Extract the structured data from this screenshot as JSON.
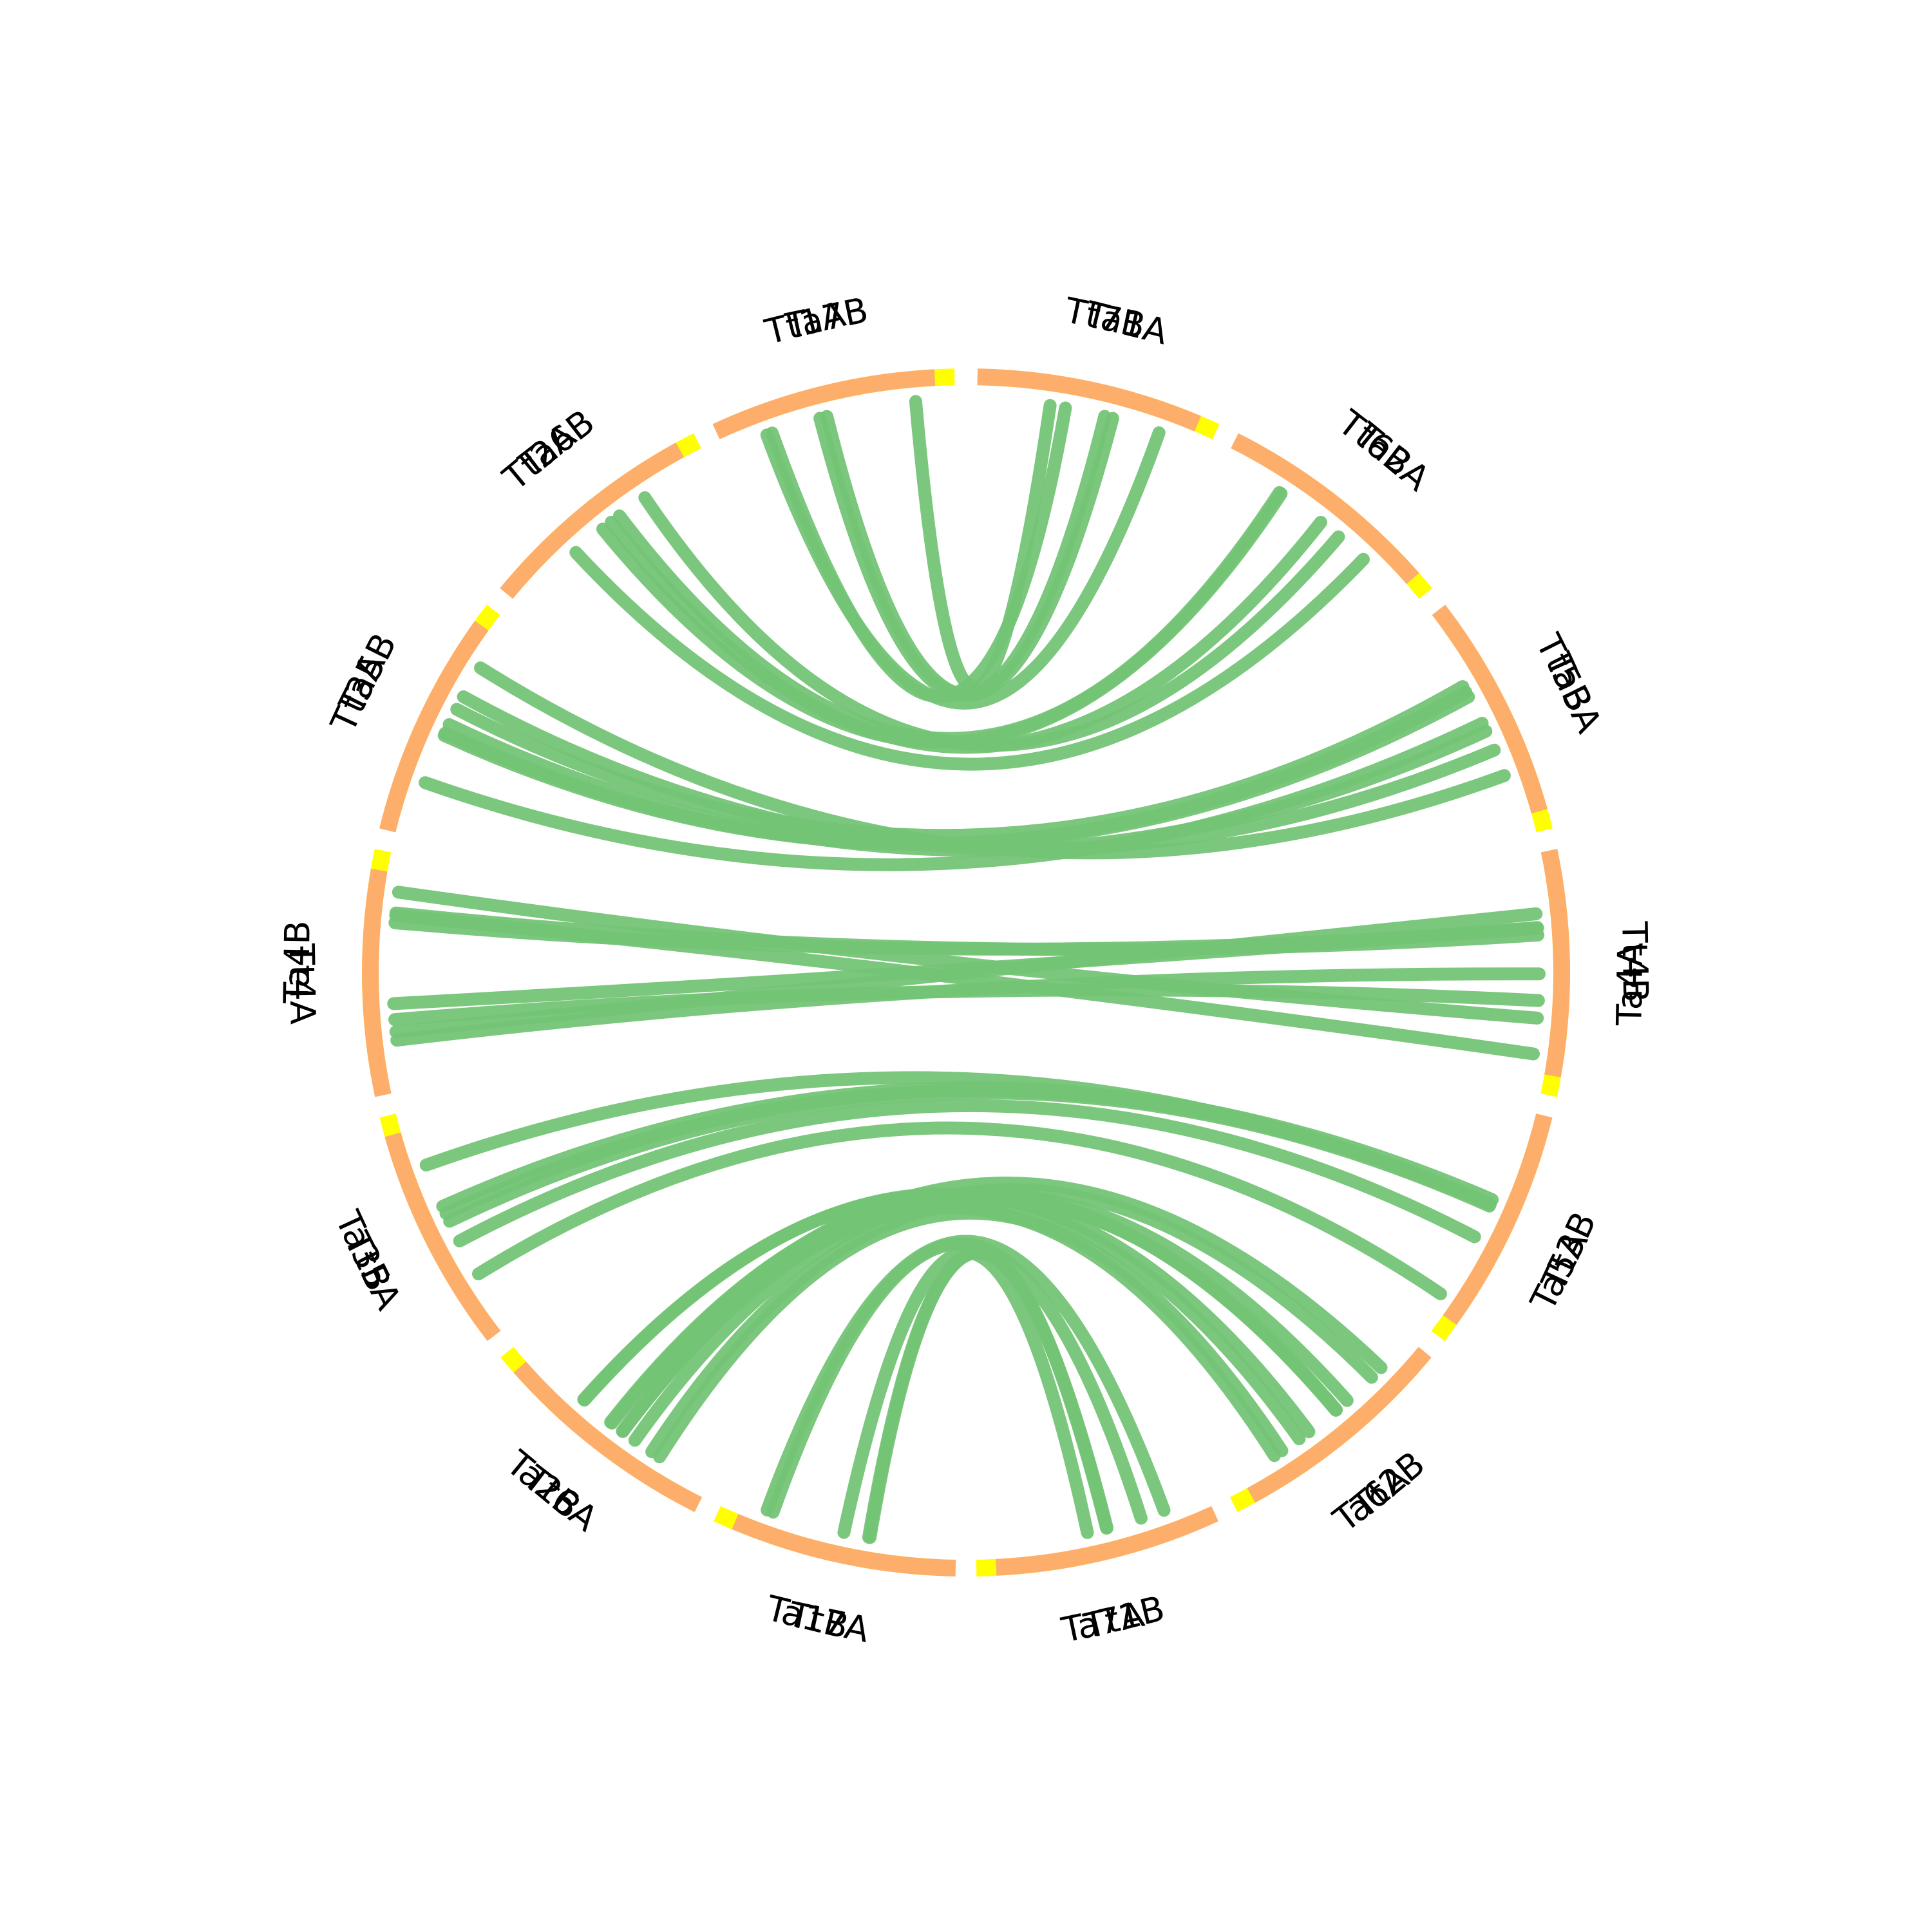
{
  "diagram": {
    "type": "circos",
    "colors": {
      "tt_segment": "#fdae6b",
      "ta_segment": "#ffff00",
      "link": "#74c476",
      "label": "#000000"
    },
    "left_chromosomes": [
      "Tt1A",
      "Tt2A",
      "Tt3A",
      "Tt4A",
      "Tt5A",
      "Tt6A",
      "Tt7A",
      "Tt1B",
      "Tt2B",
      "Tt3B",
      "Tt4B",
      "Tt5B",
      "Tt6B",
      "Tt7B"
    ],
    "right_chromosomes": [
      "Ta1A",
      "Ta2A",
      "Ta3A",
      "Ta4A",
      "Ta5A",
      "Ta6A",
      "Ta7A",
      "Ta1B",
      "Ta2B",
      "Ta3B",
      "Ta4B",
      "Ta5B",
      "Ta6B",
      "Ta7B"
    ],
    "links": [
      {
        "from": "Tt1A",
        "to": "Ta1A",
        "count": 4
      },
      {
        "from": "Tt2A",
        "to": "Ta2A",
        "count": 3
      },
      {
        "from": "Tt3A",
        "to": "Ta3A",
        "count": 3
      },
      {
        "from": "Tt4A",
        "to": "Ta4A",
        "count": 4
      },
      {
        "from": "Tt5A",
        "to": "Ta5A",
        "count": 3
      },
      {
        "from": "Tt6A",
        "to": "Ta6A",
        "count": 3
      },
      {
        "from": "Tt7A",
        "to": "Ta7A",
        "count": 1
      },
      {
        "from": "Tt1B",
        "to": "Ta1B",
        "count": 4
      },
      {
        "from": "Tt2B",
        "to": "Ta2B",
        "count": 6
      },
      {
        "from": "Tt3B",
        "to": "Ta3B",
        "count": 3
      },
      {
        "from": "Tt4B",
        "to": "Ta4B",
        "count": 4
      },
      {
        "from": "Tt5B",
        "to": "Ta5B",
        "count": 4
      },
      {
        "from": "Tt6B",
        "to": "Ta6B",
        "count": 2
      },
      {
        "from": "Tt7B",
        "to": "Ta7B",
        "count": 1
      }
    ]
  }
}
